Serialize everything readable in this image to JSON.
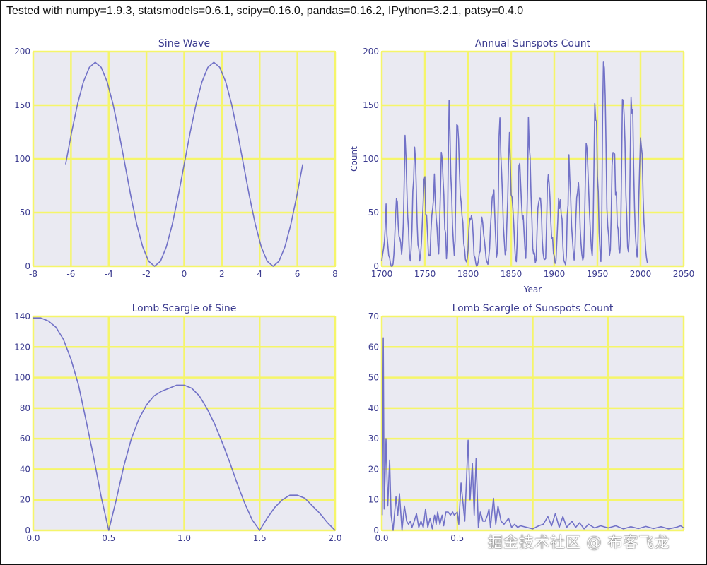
{
  "suptitle": "Tested with numpy=1.9.3, statsmodels=0.6.1, scipy=0.16.0, pandas=0.16.2, IPython=3.2.1, patsy=0.4.0",
  "watermark": "掘金技术社区 @ 布客飞龙",
  "colors": {
    "background": "#eaeaf2",
    "grid": "#f5f56a",
    "line": "#5c5cc0",
    "text": "#3b3b8f"
  },
  "chart_data": [
    {
      "type": "line",
      "title": "Sine Wave",
      "xlabel": "",
      "ylabel": "",
      "xlim": [
        -8,
        8
      ],
      "ylim": [
        0,
        200
      ],
      "xticks": [
        "-8",
        "-6",
        "-4",
        "-2",
        "0",
        "2",
        "4",
        "6",
        "8"
      ],
      "xtick_values": [
        -8,
        -6,
        -4,
        -2,
        0,
        2,
        4,
        6,
        8
      ],
      "yticks": [
        "0",
        "50",
        "100",
        "150",
        "200"
      ],
      "ytick_values": [
        0,
        50,
        100,
        150,
        200
      ],
      "grid": true,
      "x_start": -6.2832,
      "x_step": 0.31416,
      "values": [
        95,
        124.4,
        150.9,
        171.9,
        185.3,
        190,
        185.3,
        171.9,
        150.9,
        124.4,
        95,
        65.6,
        39.1,
        18.1,
        4.7,
        0,
        4.7,
        18.1,
        39.1,
        65.6,
        95,
        124.4,
        150.9,
        171.9,
        185.3,
        190,
        185.3,
        171.9,
        150.9,
        124.4,
        95,
        65.6,
        39.1,
        18.1,
        4.7,
        0,
        4.7,
        18.1,
        39.1,
        65.6,
        95
      ]
    },
    {
      "type": "line",
      "title": "Annual Sunspots Count",
      "xlabel": "Year",
      "ylabel": "Count",
      "xlim": [
        1700,
        2050
      ],
      "ylim": [
        0,
        200
      ],
      "xticks": [
        "1700",
        "1750",
        "1800",
        "1850",
        "1900",
        "1950",
        "2000",
        "2050"
      ],
      "xtick_values": [
        1700,
        1750,
        1800,
        1850,
        1900,
        1950,
        2000,
        2050
      ],
      "yticks": [
        "0",
        "50",
        "100",
        "150",
        "200"
      ],
      "ytick_values": [
        0,
        50,
        100,
        150,
        200
      ],
      "grid": true,
      "x_start": 1700,
      "x_step": 1,
      "values": [
        5,
        11,
        16,
        23,
        36,
        58,
        29,
        20,
        10,
        8,
        3,
        0,
        0,
        2,
        11,
        27,
        47,
        63,
        60,
        39,
        28,
        26,
        22,
        11,
        21,
        40,
        78,
        122,
        103,
        73,
        47,
        35,
        11,
        5,
        16,
        34,
        70,
        81,
        111,
        101,
        73,
        40,
        20,
        16,
        5,
        11,
        22,
        40,
        60,
        80.9,
        83.4,
        47.7,
        47.8,
        30.7,
        12.2,
        9.6,
        10.2,
        32.4,
        47.6,
        54,
        62.9,
        85.9,
        61.2,
        45.1,
        36.4,
        20.9,
        11.4,
        37.8,
        69.8,
        106.1,
        100.8,
        81.6,
        66.5,
        34.8,
        30.6,
        7,
        19.8,
        92.5,
        154.4,
        125.9,
        84.8,
        68.1,
        38.5,
        22.8,
        10.2,
        24.1,
        82.9,
        132,
        130.9,
        118.1,
        89.9,
        66.6,
        60,
        46.9,
        41,
        21.3,
        16,
        6.4,
        4.1,
        6.8,
        14.5,
        34,
        45,
        43.1,
        47.5,
        42.2,
        28.1,
        10.1,
        8.1,
        2.5,
        0,
        1.4,
        5,
        12.2,
        13.9,
        35.4,
        45.8,
        41.1,
        30.1,
        23.9,
        15.6,
        6.6,
        4,
        1.8,
        8.5,
        16.6,
        36.3,
        49.6,
        64.2,
        67,
        70.9,
        47.8,
        27.5,
        8.5,
        13.2,
        56.9,
        121.5,
        138.3,
        103.2,
        85.7,
        64.6,
        36.7,
        24.2,
        10.7,
        15,
        40.1,
        61.5,
        98.5,
        124.7,
        96.3,
        66.6,
        64.5,
        54.1,
        39,
        20.6,
        6.7,
        4.3,
        22.7,
        54.8,
        93.8,
        95.8,
        77.2,
        59.1,
        44,
        47,
        30.5,
        16.3,
        7.3,
        37.6,
        74,
        139,
        111.2,
        101.6,
        66.2,
        44.7,
        17,
        11.3,
        12.4,
        3.4,
        6,
        32.3,
        54.3,
        59.7,
        63.7,
        63.5,
        52.2,
        25.4,
        13.1,
        6.8,
        6.3,
        7.1,
        35.6,
        73,
        85.1,
        78,
        64,
        41.8,
        26.2,
        26.7,
        12.1,
        9.5,
        2.7,
        5,
        24.4,
        42,
        63.5,
        53.8,
        62,
        48.5,
        43.9,
        18.6,
        5.7,
        3.6,
        1.4,
        9.6,
        47.4,
        57.1,
        103.9,
        80.6,
        63.6,
        37.6,
        26.1,
        14.2,
        5.8,
        16.7,
        44.3,
        63.9,
        69,
        77.8,
        64.9,
        35.7,
        21.2,
        11.1,
        5.7,
        8.7,
        36.1,
        79.7,
        114.4,
        109.6,
        88.8,
        67.8,
        47.5,
        30.6,
        16.3,
        9.6,
        33.2,
        92.6,
        151.6,
        136.3,
        134.7,
        83.9,
        69.4,
        31.5,
        13.9,
        4.4,
        38,
        141.7,
        190.2,
        184.8,
        159,
        112.3,
        53.9,
        37.6,
        27.9,
        10.2,
        15.1,
        47,
        93.8,
        105.9,
        105.5,
        104.5,
        66.6,
        68.9,
        38,
        34.5,
        15.5,
        12.6,
        27.5,
        92.5,
        155.4,
        154.6,
        140.4,
        115.9,
        66.6,
        45.9,
        17.9,
        13.4,
        29.4,
        100.2,
        157.6,
        142.6,
        145.7,
        94.3,
        54.6,
        29.9,
        17.5,
        8.6,
        21.5,
        64.3,
        93.3,
        119.6,
        111,
        104,
        63.7,
        40.4,
        29.8,
        15.2,
        7.5,
        2.9
      ]
    },
    {
      "type": "line",
      "title": "Lomb Scargle of Sine",
      "xlabel": "",
      "ylabel": "",
      "xlim": [
        0,
        2
      ],
      "ylim": [
        0,
        140
      ],
      "xticks": [
        "0.0",
        "0.5",
        "1.0",
        "1.5",
        "2.0"
      ],
      "xtick_values": [
        0,
        0.5,
        1,
        1.5,
        2
      ],
      "yticks": [
        "0",
        "20",
        "40",
        "60",
        "80",
        "100",
        "120",
        "140"
      ],
      "ytick_values": [
        0,
        20,
        40,
        60,
        80,
        100,
        120,
        140
      ],
      "grid": true,
      "x_start": 0,
      "x_step": 0.05,
      "values": [
        139,
        139,
        137,
        133,
        125,
        112,
        95,
        72,
        48,
        22,
        0,
        20,
        42,
        60,
        73,
        82,
        88,
        91,
        93,
        95,
        95,
        93,
        88,
        80,
        70,
        58,
        45,
        31,
        18,
        7,
        0,
        8,
        15,
        20,
        23,
        23,
        21,
        16,
        11,
        5,
        0
      ]
    },
    {
      "type": "line",
      "title": "Lomb Scargle of Sunspots Count",
      "xlabel": "",
      "ylabel": "",
      "xlim": [
        0,
        2
      ],
      "ylim": [
        0,
        70
      ],
      "xticks": [
        "0.0",
        "0.5"
      ],
      "xtick_values": [
        0,
        0.5
      ],
      "xgrid_values": [
        0,
        0.5,
        1,
        1.5,
        2
      ],
      "yticks": [
        "0",
        "10",
        "20",
        "30",
        "40",
        "50",
        "60",
        "70"
      ],
      "ytick_values": [
        0,
        10,
        20,
        30,
        40,
        50,
        60,
        70
      ],
      "grid": true,
      "points": [
        [
          0.003,
          5
        ],
        [
          0.01,
          63
        ],
        [
          0.016,
          7
        ],
        [
          0.028,
          30
        ],
        [
          0.04,
          8
        ],
        [
          0.052,
          23
        ],
        [
          0.062,
          5
        ],
        [
          0.075,
          0
        ],
        [
          0.094,
          11
        ],
        [
          0.106,
          5
        ],
        [
          0.117,
          12
        ],
        [
          0.134,
          0
        ],
        [
          0.15,
          8
        ],
        [
          0.165,
          3
        ],
        [
          0.177,
          2
        ],
        [
          0.19,
          3
        ],
        [
          0.2,
          1
        ],
        [
          0.215,
          3
        ],
        [
          0.23,
          5.5
        ],
        [
          0.245,
          1
        ],
        [
          0.26,
          3
        ],
        [
          0.275,
          1
        ],
        [
          0.29,
          7
        ],
        [
          0.305,
          1
        ],
        [
          0.32,
          4
        ],
        [
          0.335,
          0.5
        ],
        [
          0.35,
          5
        ],
        [
          0.36,
          2
        ],
        [
          0.37,
          6
        ],
        [
          0.385,
          2
        ],
        [
          0.4,
          5
        ],
        [
          0.41,
          1.5
        ],
        [
          0.425,
          6
        ],
        [
          0.44,
          6
        ],
        [
          0.455,
          5
        ],
        [
          0.47,
          6
        ],
        [
          0.48,
          5
        ],
        [
          0.5,
          6
        ],
        [
          0.51,
          2
        ],
        [
          0.525,
          15.5
        ],
        [
          0.54,
          8
        ],
        [
          0.55,
          3
        ],
        [
          0.572,
          29.5
        ],
        [
          0.585,
          10
        ],
        [
          0.6,
          22
        ],
        [
          0.612,
          5
        ],
        [
          0.625,
          23.5
        ],
        [
          0.64,
          1
        ],
        [
          0.653,
          6
        ],
        [
          0.67,
          3
        ],
        [
          0.685,
          3
        ],
        [
          0.7,
          5
        ],
        [
          0.71,
          7
        ],
        [
          0.72,
          1
        ],
        [
          0.74,
          10.5
        ],
        [
          0.755,
          2
        ],
        [
          0.77,
          8
        ],
        [
          0.79,
          3
        ],
        [
          0.81,
          2
        ],
        [
          0.84,
          4
        ],
        [
          0.86,
          1
        ],
        [
          0.88,
          2
        ],
        [
          0.9,
          1
        ],
        [
          0.92,
          1.5
        ],
        [
          0.96,
          1
        ],
        [
          1.0,
          0.5
        ],
        [
          1.04,
          1.5
        ],
        [
          1.07,
          2
        ],
        [
          1.1,
          4.5
        ],
        [
          1.125,
          1.5
        ],
        [
          1.15,
          5.5
        ],
        [
          1.175,
          1
        ],
        [
          1.2,
          4.5
        ],
        [
          1.225,
          1
        ],
        [
          1.26,
          3
        ],
        [
          1.285,
          1
        ],
        [
          1.31,
          2.5
        ],
        [
          1.34,
          0.5
        ],
        [
          1.37,
          2
        ],
        [
          1.41,
          0.8
        ],
        [
          1.45,
          1.5
        ],
        [
          1.5,
          0.8
        ],
        [
          1.55,
          1.5
        ],
        [
          1.6,
          0.5
        ],
        [
          1.65,
          1.2
        ],
        [
          1.7,
          0.6
        ],
        [
          1.75,
          1.3
        ],
        [
          1.8,
          0.6
        ],
        [
          1.85,
          1.2
        ],
        [
          1.9,
          0.5
        ],
        [
          1.95,
          1
        ],
        [
          1.98,
          1.5
        ],
        [
          2.0,
          0.8
        ]
      ]
    }
  ]
}
